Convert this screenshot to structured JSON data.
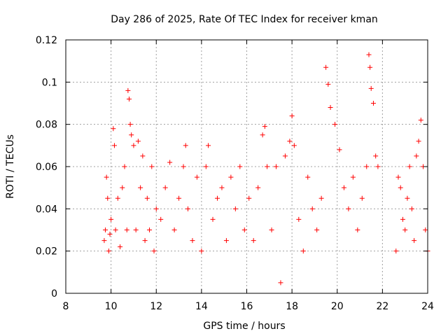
{
  "chart_data": {
    "type": "scatter",
    "title": "Day 286 of 2025, Rate Of TEC Index for receiver kman",
    "xlabel": "GPS time / hours",
    "ylabel": "ROTI / TECUs",
    "xlim": [
      8,
      24
    ],
    "ylim": [
      0,
      0.12
    ],
    "xticks": [
      8,
      10,
      12,
      14,
      16,
      18,
      20,
      22,
      24
    ],
    "yticks": [
      0,
      0.02,
      0.04,
      0.06,
      0.08,
      0.1,
      0.12
    ],
    "xtick_labels": [
      "8",
      "10",
      "12",
      "14",
      "16",
      "18",
      "20",
      "22",
      "24"
    ],
    "ytick_labels": [
      "0",
      "0.02",
      "0.04",
      "0.06",
      "0.08",
      "0.1",
      "0.12"
    ],
    "grid": true,
    "marker": "+",
    "series": [
      {
        "name": "ROTI",
        "color": "#ff0000",
        "x": [
          9.7,
          9.75,
          9.8,
          9.85,
          9.9,
          9.95,
          10.0,
          10.1,
          10.15,
          10.2,
          10.3,
          10.4,
          10.5,
          10.6,
          10.7,
          10.75,
          10.8,
          10.85,
          10.9,
          11.0,
          11.1,
          11.2,
          11.3,
          11.4,
          11.5,
          11.6,
          11.7,
          11.8,
          11.9,
          12.0,
          12.2,
          12.4,
          12.6,
          12.8,
          13.0,
          13.2,
          13.3,
          13.4,
          13.6,
          13.8,
          14.0,
          14.2,
          14.3,
          14.5,
          14.7,
          14.9,
          15.1,
          15.3,
          15.5,
          15.7,
          15.9,
          16.1,
          16.3,
          16.5,
          16.7,
          16.8,
          16.9,
          17.1,
          17.3,
          17.5,
          17.7,
          17.9,
          18.0,
          18.1,
          18.3,
          18.5,
          18.7,
          18.9,
          19.1,
          19.3,
          19.5,
          19.6,
          19.7,
          19.9,
          20.1,
          20.3,
          20.5,
          20.7,
          20.9,
          21.1,
          21.3,
          21.4,
          21.45,
          21.5,
          21.6,
          21.7,
          21.8,
          22.6,
          22.7,
          22.8,
          22.9,
          23.0,
          23.1,
          23.2,
          23.3,
          23.4,
          23.5,
          23.6,
          23.7,
          23.8,
          23.9,
          24.0
        ],
        "y": [
          0.025,
          0.03,
          0.055,
          0.045,
          0.02,
          0.028,
          0.035,
          0.078,
          0.07,
          0.03,
          0.045,
          0.022,
          0.05,
          0.06,
          0.03,
          0.096,
          0.092,
          0.08,
          0.075,
          0.07,
          0.03,
          0.072,
          0.05,
          0.065,
          0.025,
          0.045,
          0.03,
          0.06,
          0.02,
          0.04,
          0.035,
          0.05,
          0.062,
          0.03,
          0.045,
          0.06,
          0.07,
          0.04,
          0.025,
          0.055,
          0.02,
          0.06,
          0.07,
          0.035,
          0.045,
          0.05,
          0.025,
          0.055,
          0.04,
          0.06,
          0.03,
          0.045,
          0.025,
          0.05,
          0.075,
          0.079,
          0.06,
          0.03,
          0.06,
          0.005,
          0.065,
          0.072,
          0.084,
          0.07,
          0.035,
          0.02,
          0.055,
          0.04,
          0.03,
          0.045,
          0.107,
          0.099,
          0.088,
          0.08,
          0.068,
          0.05,
          0.04,
          0.055,
          0.03,
          0.045,
          0.06,
          0.113,
          0.107,
          0.097,
          0.09,
          0.065,
          0.06,
          0.02,
          0.055,
          0.05,
          0.035,
          0.03,
          0.045,
          0.06,
          0.04,
          0.025,
          0.065,
          0.072,
          0.082,
          0.06,
          0.03,
          0.02
        ]
      }
    ]
  }
}
